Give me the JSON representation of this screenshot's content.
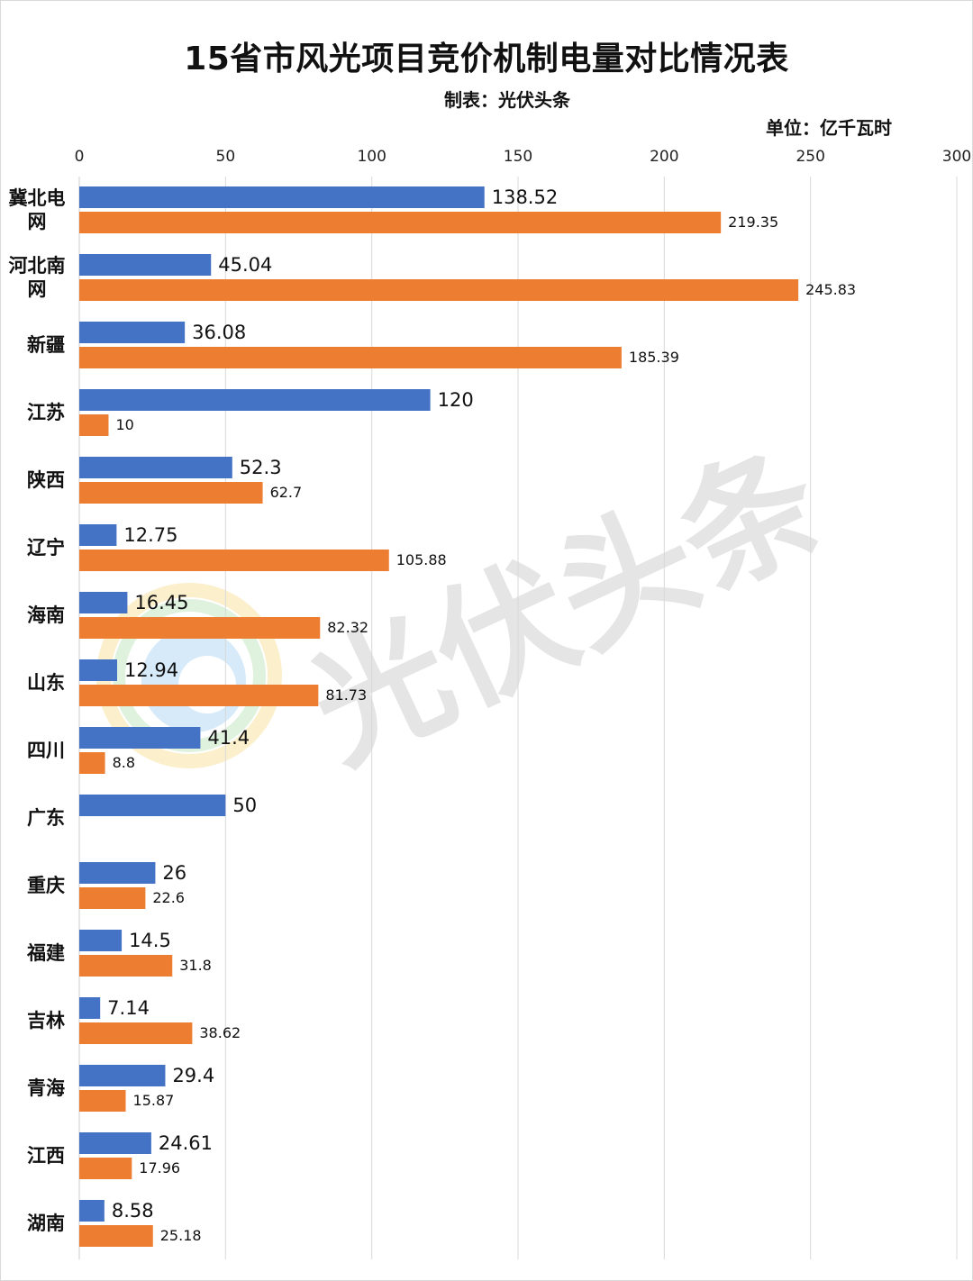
{
  "header": {
    "title": "15省市风光项目竞价机制电量对比情况表",
    "subtitle": "制表：光伏头条",
    "unit": "单位：亿千瓦时"
  },
  "watermark": {
    "text": "光伏头条"
  },
  "colors": {
    "series1": "#4472C4",
    "series2": "#ED7D31",
    "grid": "#d9d9d9"
  },
  "chart_data": {
    "type": "bar",
    "orientation": "horizontal",
    "title": "15省市风光项目竞价机制电量对比情况表",
    "unit": "单位：亿千瓦时",
    "xlim": [
      0,
      300
    ],
    "xticks": [
      0,
      50,
      100,
      150,
      200,
      250,
      300
    ],
    "grid": true,
    "categories": [
      [
        "冀北电",
        "网"
      ],
      [
        "河北南",
        "网"
      ],
      [
        "新疆"
      ],
      [
        "江苏"
      ],
      [
        "陕西"
      ],
      [
        "辽宁"
      ],
      [
        "海南"
      ],
      [
        "山东"
      ],
      [
        "四川"
      ],
      [
        "广东"
      ],
      [
        "重庆"
      ],
      [
        "福建"
      ],
      [
        "吉林"
      ],
      [
        "青海"
      ],
      [
        "江西"
      ],
      [
        "湖南"
      ]
    ],
    "series": [
      {
        "values": [
          138.52,
          45.04,
          36.08,
          120,
          52.3,
          12.75,
          16.45,
          12.94,
          41.4,
          50,
          26,
          14.5,
          7.14,
          29.4,
          24.61,
          8.58
        ]
      },
      {
        "values": [
          219.35,
          245.83,
          185.39,
          10,
          62.7,
          105.88,
          82.32,
          81.73,
          8.8,
          null,
          22.6,
          31.8,
          38.62,
          15.87,
          17.96,
          25.18
        ]
      }
    ]
  }
}
